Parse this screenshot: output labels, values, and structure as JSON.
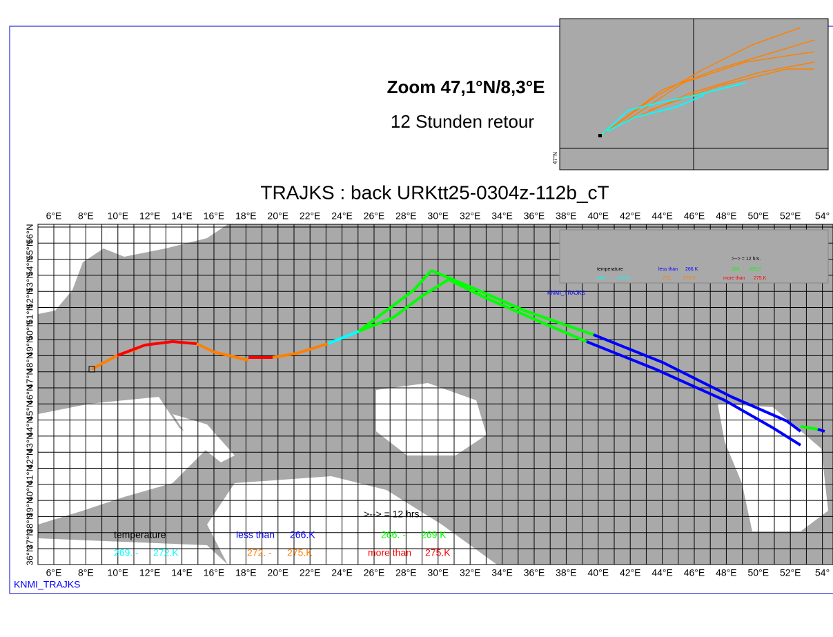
{
  "title": "TRAJKS : back URKtt25-0304z-112b_cT",
  "zoom": {
    "title": "Zoom 47,1°N/8,3°E",
    "subtitle": "12 Stunden retour",
    "lat_label": "47°N"
  },
  "map": {
    "lon_labels": [
      "6°E",
      "8°E",
      "10°E",
      "12°E",
      "14°E",
      "16°E",
      "18°E",
      "20°E",
      "22°E",
      "24°E",
      "26°E",
      "28°E",
      "30°E",
      "32°E",
      "34°E",
      "36°E",
      "38°E",
      "40°E",
      "42°E",
      "44°E",
      "46°E",
      "48°E",
      "50°E",
      "52°E",
      "54°"
    ],
    "lat_labels": [
      "36°N",
      "37°N",
      "38°N",
      "39°N",
      "40°N",
      "41°N",
      "42°N",
      "43°N",
      "44°N",
      "45°N",
      "46°N",
      "47°N",
      "48°N",
      "49°N",
      "50°N",
      "51°N",
      "52°N",
      "53°N",
      "54°N",
      "55°N",
      "56°N"
    ]
  },
  "legend": {
    "arrow_note": ">--> = 12 hrs.",
    "heading": "temperature",
    "items": [
      {
        "from": "less than",
        "to": "266.K",
        "color": "#0000ff"
      },
      {
        "from": "266. -",
        "to": "269.K",
        "color": "#00ff00"
      },
      {
        "from": "269. -",
        "to": "272.K",
        "color": "#00ffff"
      },
      {
        "from": "272. -",
        "to": "275.K",
        "color": "#ff8000"
      },
      {
        "from": "more than",
        "to": "275.K",
        "color": "#ff0000"
      }
    ]
  },
  "mini_legend": {
    "arrow_note": ">--> = 12 hrs.",
    "heading": "temperature",
    "items": [
      {
        "from": "less than",
        "to": "266.K",
        "color": "#0000ff"
      },
      {
        "from": "266. -",
        "to": "269.K",
        "color": "#00ff00"
      },
      {
        "from": "269. -",
        "to": "272.K",
        "color": "#00ffff"
      },
      {
        "from": "272. -",
        "to": "275.K",
        "color": "#ff8000"
      },
      {
        "from": "more than",
        "to": "275.K",
        "color": "#ff0000"
      }
    ],
    "footer": "KNMI_TRAJKS"
  },
  "footer": "KNMI_TRAJKS"
}
